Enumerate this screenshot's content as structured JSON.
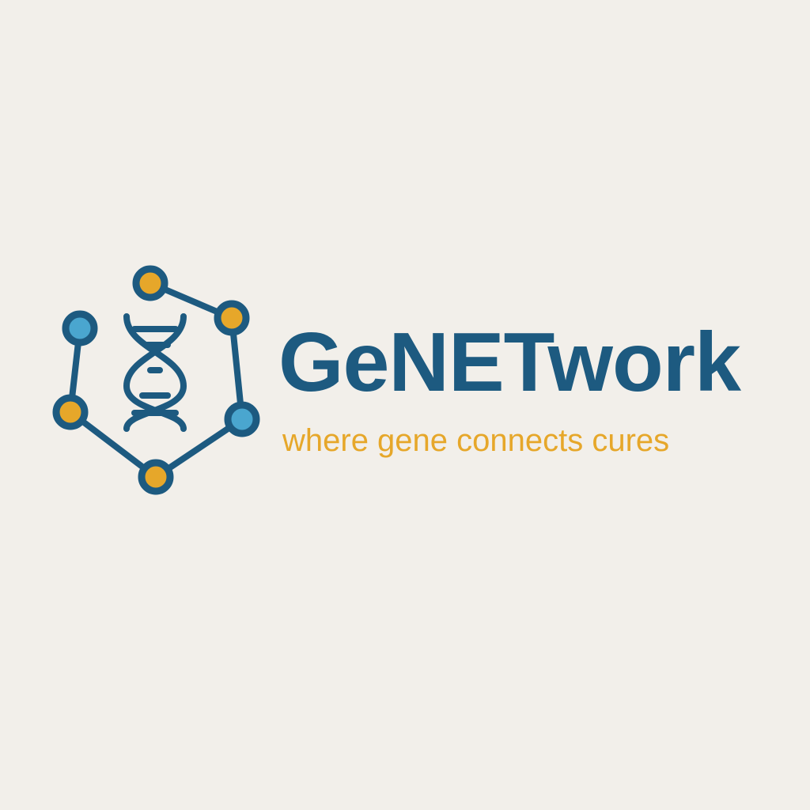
{
  "brand": {
    "name": "GeNETwork",
    "tagline": "where gene connects cures"
  },
  "icons": {
    "logo": "dna-network-icon"
  },
  "colors": {
    "background": "#f2efea",
    "primary": "#1d5a80",
    "accent_gold": "#e6a72a",
    "accent_blue": "#4aa6cf"
  }
}
